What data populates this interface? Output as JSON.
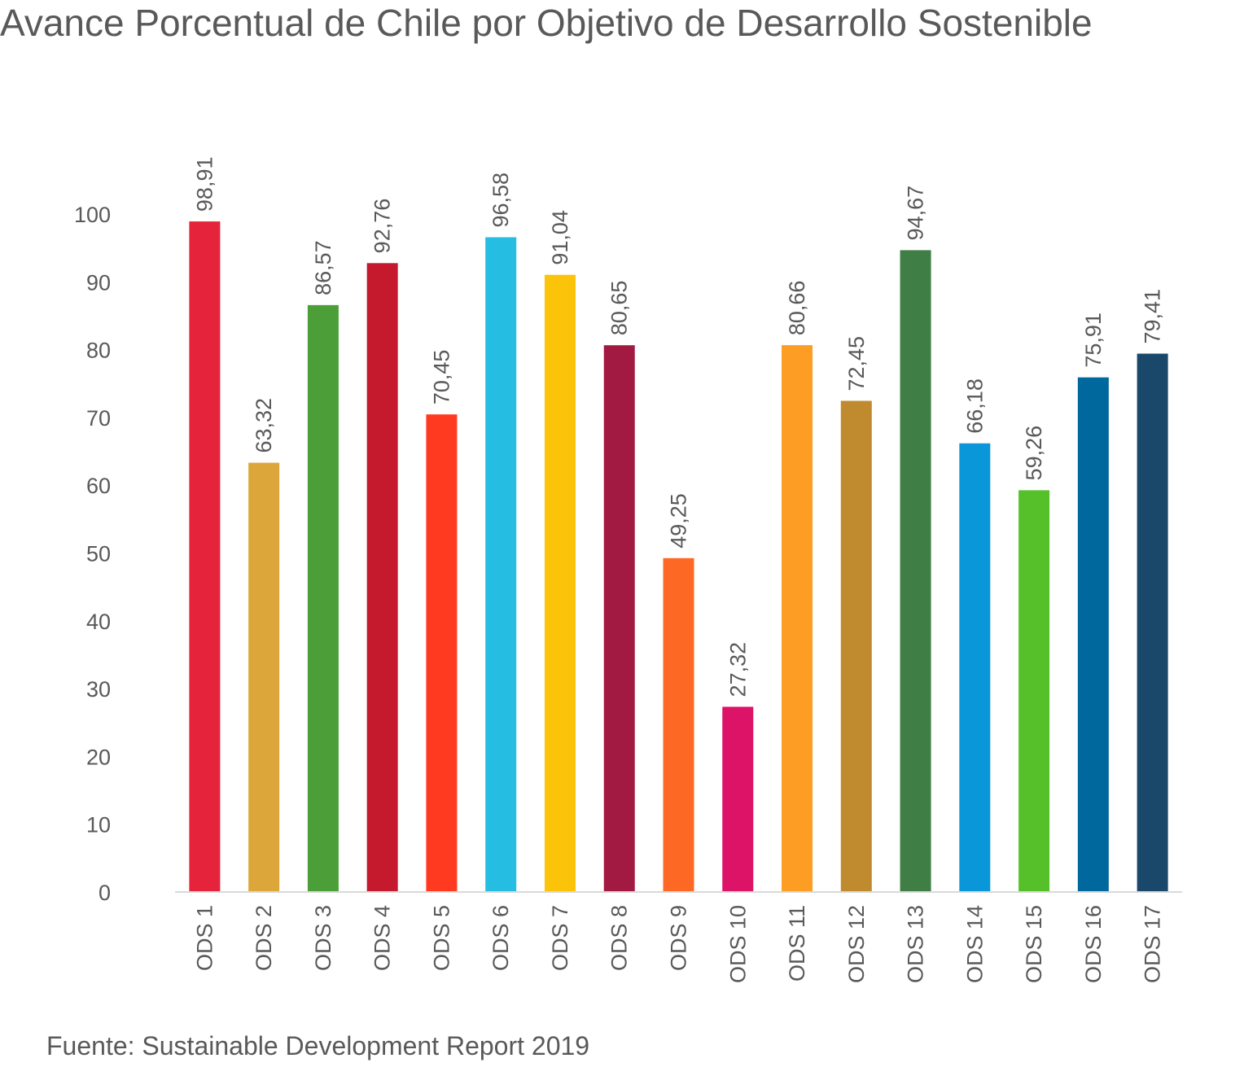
{
  "chart_data": {
    "type": "bar",
    "title": "Avance Porcentual de Chile por Objetivo de Desarrollo Sostenible",
    "categories": [
      "ODS 1",
      "ODS 2",
      "ODS 3",
      "ODS 4",
      "ODS 5",
      "ODS 6",
      "ODS 7",
      "ODS 8",
      "ODS 9",
      "ODS 10",
      "ODS 11",
      "ODS 12",
      "ODS 13",
      "ODS 14",
      "ODS 15",
      "ODS 16",
      "ODS 17"
    ],
    "values": [
      98.91,
      63.32,
      86.57,
      92.76,
      70.45,
      96.58,
      91.04,
      80.65,
      49.25,
      27.32,
      80.66,
      72.45,
      94.67,
      66.18,
      59.26,
      75.91,
      79.41
    ],
    "data_labels": [
      "98,91",
      "63,32",
      "86,57",
      "92,76",
      "70,45",
      "96,58",
      "91,04",
      "80,65",
      "49,25",
      "27,32",
      "80,66",
      "72,45",
      "94,67",
      "66,18",
      "59,26",
      "75,91",
      "79,41"
    ],
    "colors": [
      "#e5243b",
      "#dda63a",
      "#4c9f38",
      "#c5192d",
      "#ff3a21",
      "#26bde2",
      "#fcc30b",
      "#a21942",
      "#fd6925",
      "#dd1367",
      "#fd9d24",
      "#bf8b2e",
      "#3f7e44",
      "#0a97d9",
      "#56c02b",
      "#00689d",
      "#19486a"
    ],
    "y_ticks": [
      "0",
      "10",
      "20",
      "30",
      "40",
      "50",
      "60",
      "70",
      "80",
      "90",
      "100"
    ],
    "ylim": [
      0,
      100
    ],
    "grid": false,
    "xlabel": "",
    "ylabel": ""
  },
  "source": "Fuente: Sustainable Development Report 2019"
}
